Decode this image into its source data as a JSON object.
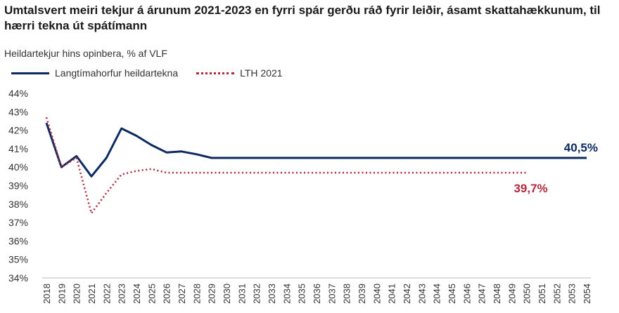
{
  "title": "Umtalsvert meiri tekjur á árunum 2021-2023 en fyrri spár gerðu ráð fyrir leiðir, ásamt skattahækkunum, til hærri tekna út spátímann",
  "subtitle": "Heildartekjur hins opinbera, % af VLF",
  "colors": {
    "series1": "#0b2a5f",
    "series2": "#b3283b",
    "axis": "#bbbbbb"
  },
  "chart_data": {
    "type": "line",
    "title": "Umtalsvert meiri tekjur á árunum 2021-2023 en fyrri spár gerðu ráð fyrir leiðir, ásamt skattahækkunum, til hærri tekna út spátímann",
    "ylabel": "Heildartekjur hins opinbera, % af VLF",
    "ylim": [
      34,
      44
    ],
    "yticks": [
      "34%",
      "35%",
      "36%",
      "37%",
      "38%",
      "39%",
      "40%",
      "41%",
      "42%",
      "43%",
      "44%"
    ],
    "categories": [
      "2018",
      "2019",
      "2020",
      "2021",
      "2022",
      "2023",
      "2024",
      "2025",
      "2026",
      "2027",
      "2028",
      "2029",
      "2030",
      "2031",
      "2032",
      "2033",
      "2034",
      "2035",
      "2036",
      "2037",
      "2038",
      "2039",
      "2040",
      "2041",
      "2042",
      "2043",
      "2044",
      "2045",
      "2046",
      "2047",
      "2048",
      "2049",
      "2050",
      "2051",
      "2052",
      "2053",
      "2054"
    ],
    "legend_position": "top-left",
    "grid": false,
    "series": [
      {
        "name": "Langtímahorfur heildartekna",
        "style": "solid",
        "values": [
          42.4,
          40.0,
          40.6,
          39.5,
          40.5,
          42.1,
          41.7,
          41.2,
          40.8,
          40.85,
          40.7,
          40.5,
          40.5,
          40.5,
          40.5,
          40.5,
          40.5,
          40.5,
          40.5,
          40.5,
          40.5,
          40.5,
          40.5,
          40.5,
          40.5,
          40.5,
          40.5,
          40.5,
          40.5,
          40.5,
          40.5,
          40.5,
          40.5,
          40.5,
          40.5,
          40.5,
          40.5
        ],
        "end_label": "40,5%"
      },
      {
        "name": "LTH 2021",
        "style": "dotted",
        "values": [
          42.7,
          40.0,
          40.5,
          37.5,
          38.6,
          39.6,
          39.8,
          39.9,
          39.7,
          39.7,
          39.7,
          39.7,
          39.7,
          39.7,
          39.7,
          39.7,
          39.7,
          39.7,
          39.7,
          39.7,
          39.7,
          39.7,
          39.7,
          39.7,
          39.7,
          39.7,
          39.7,
          39.7,
          39.7,
          39.7,
          39.7,
          39.7,
          39.7,
          null,
          null,
          null,
          null
        ],
        "end_label": "39,7%"
      }
    ]
  }
}
